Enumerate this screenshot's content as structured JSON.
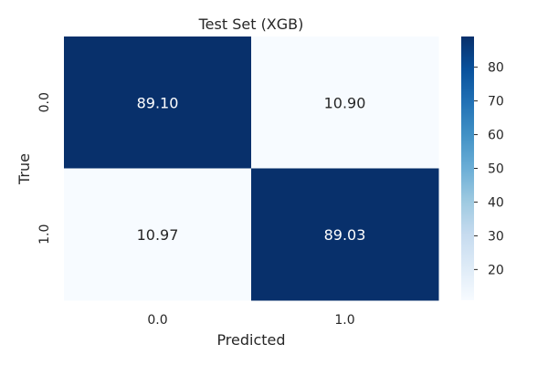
{
  "chart_data": {
    "type": "heatmap",
    "title": "Test Set (XGB)",
    "xlabel": "Predicted",
    "ylabel": "True",
    "x_categories": [
      "0.0",
      "1.0"
    ],
    "y_categories": [
      "0.0",
      "1.0"
    ],
    "values": [
      [
        89.1,
        10.9
      ],
      [
        10.97,
        89.03
      ]
    ],
    "value_labels": [
      [
        "89.10",
        "10.90"
      ],
      [
        "10.97",
        "89.03"
      ]
    ],
    "colormap": "Blues",
    "color_range": [
      10.9,
      89.1
    ],
    "colorbar_ticks": [
      20,
      30,
      40,
      50,
      60,
      70,
      80
    ],
    "colorbar_tick_labels": [
      "20",
      "30",
      "40",
      "50",
      "60",
      "70",
      "80"
    ],
    "grid": false,
    "legend": "colorbar-right"
  }
}
